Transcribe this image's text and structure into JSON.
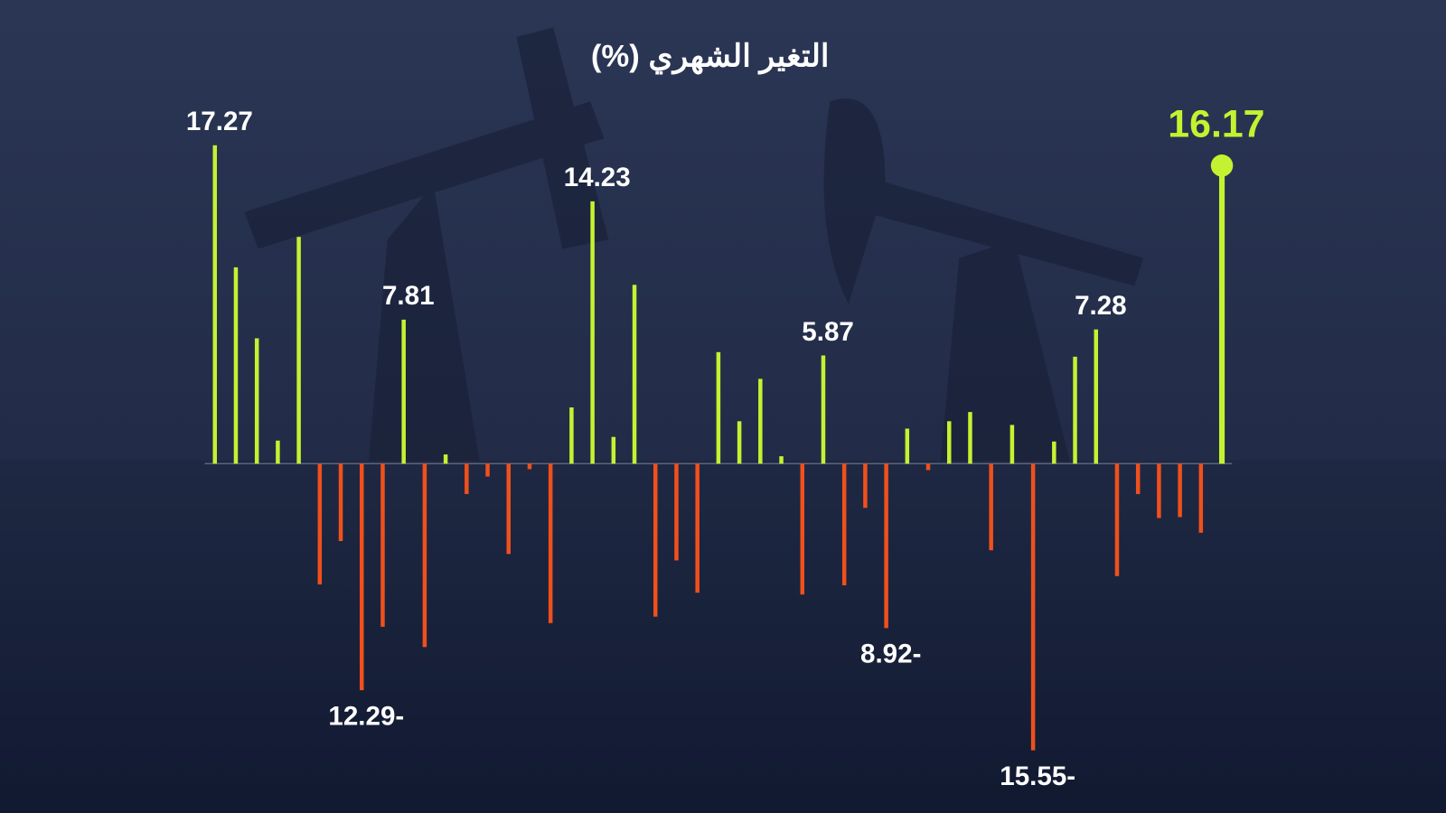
{
  "chart_data": {
    "type": "bar",
    "subtitle": "التغير الشهري  (%)",
    "values": [
      17.27,
      10.65,
      6.8,
      1.25,
      12.3,
      -6.55,
      -4.2,
      -12.29,
      -8.85,
      7.81,
      -9.95,
      0.5,
      -1.65,
      -0.7,
      -4.9,
      -0.3,
      -8.65,
      3.05,
      14.23,
      1.45,
      9.7,
      -8.3,
      -5.25,
      -7.0,
      6.05,
      2.3,
      4.6,
      0.4,
      -7.1,
      5.87,
      -6.6,
      -2.4,
      -8.92,
      1.9,
      -0.35,
      2.3,
      2.8,
      -4.7,
      2.1,
      -15.55,
      1.2,
      5.8,
      7.28,
      -6.1,
      -1.65,
      -2.95,
      -2.9,
      -3.75,
      16.17
    ],
    "value_labels": [
      "17.27",
      null,
      null,
      null,
      null,
      null,
      null,
      "12.29-",
      null,
      "7.81",
      null,
      null,
      null,
      null,
      null,
      null,
      null,
      null,
      "14.23",
      null,
      null,
      null,
      null,
      null,
      null,
      null,
      null,
      null,
      null,
      "5.87",
      null,
      null,
      "8.92-",
      null,
      null,
      null,
      null,
      null,
      null,
      "15.55-",
      null,
      null,
      "7.28",
      null,
      null,
      null,
      null,
      null,
      "16.17"
    ],
    "positive_color": "#c5f230",
    "negative_color": "#f0501c",
    "ylim": [
      -19,
      25
    ],
    "highlight_last": true
  }
}
